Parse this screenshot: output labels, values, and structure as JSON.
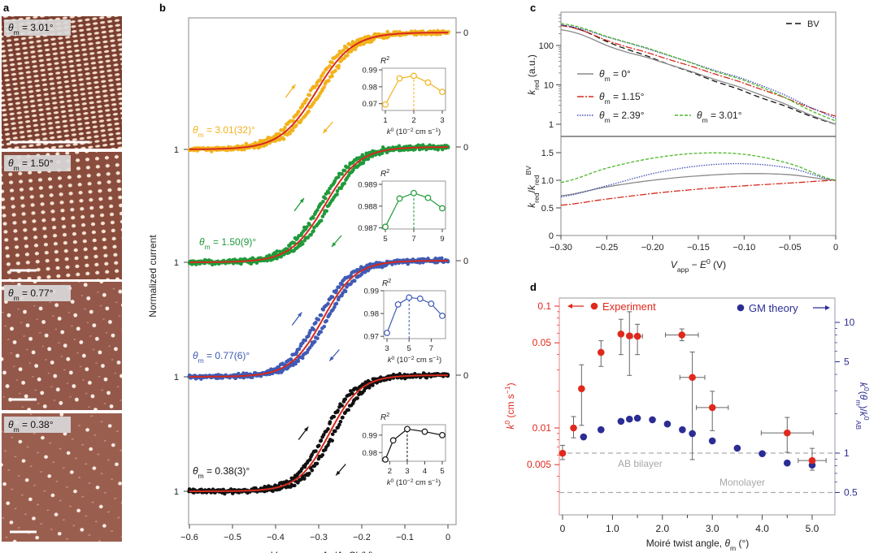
{
  "panel_labels": [
    "a",
    "b",
    "c",
    "d"
  ],
  "chart_data": [
    {
      "panel": "a",
      "type": "image-grid",
      "images": [
        {
          "label": [
            {
              "t": "θ",
              "s": "i"
            },
            {
              "t": "m",
              "s": "sub"
            },
            {
              "t": " = 3.01°",
              "s": ""
            }
          ],
          "density": "high"
        },
        {
          "label": [
            {
              "t": "θ",
              "s": "i"
            },
            {
              "t": "m",
              "s": "sub"
            },
            {
              "t": " = 1.50°",
              "s": ""
            }
          ],
          "density": "medium"
        },
        {
          "label": [
            {
              "t": "θ",
              "s": "i"
            },
            {
              "t": "m",
              "s": "sub"
            },
            {
              "t": " = 0.77°",
              "s": ""
            }
          ],
          "density": "low"
        },
        {
          "label": [
            {
              "t": "θ",
              "s": "i"
            },
            {
              "t": "m",
              "s": "sub"
            },
            {
              "t": " = 0.38°",
              "s": ""
            }
          ],
          "density": "sparse"
        }
      ]
    },
    {
      "panel": "b",
      "type": "scatter",
      "xlabel": [
        {
          "t": "V",
          "s": "i"
        },
        {
          "t": "app",
          "s": "sub"
        },
        {
          "t": " versus Ag/AgCl (V)",
          "s": ""
        }
      ],
      "ylabel": "Normalized current",
      "xlim": [
        -0.6,
        0
      ],
      "xticks": [
        "-0.6",
        "-0.5",
        "-0.4",
        "-0.3",
        "-0.2",
        "-0.1",
        "0"
      ],
      "left_tick_label": "1",
      "right_tick_label": "0",
      "fit_color": "#d62a1e",
      "series": [
        {
          "name": [
            {
              "t": "θ",
              "s": "i"
            },
            {
              "t": "m",
              "s": "sub"
            },
            {
              "t": " = 3.01(32)°",
              "s": ""
            }
          ],
          "color": "#f2b21b",
          "E_half": -0.305,
          "width": 0.042,
          "inset": {
            "title": [
              {
                "t": "R",
                "s": "i"
              },
              {
                "t": "2",
                "s": "sup"
              }
            ],
            "k0": [
              1,
              1.5,
              2,
              2.5,
              3
            ],
            "R2": [
              0.9695,
              0.985,
              0.9865,
              0.9825,
              0.977
            ],
            "ylim": [
              0.966,
              0.991
            ],
            "yticks": [
              "0.97",
              "0.98",
              "0.99"
            ],
            "xticks": [
              "1",
              "2",
              "3"
            ],
            "xlim": [
              1,
              3
            ],
            "best": 2
          }
        },
        {
          "name": [
            {
              "t": "θ",
              "s": "i"
            },
            {
              "t": "m",
              "s": "sub"
            },
            {
              "t": " = 1.50(9)°",
              "s": ""
            }
          ],
          "color": "#1f9a3a",
          "E_half": -0.285,
          "width": 0.04,
          "inset": {
            "title": [
              {
                "t": "R",
                "s": "i"
              },
              {
                "t": "2",
                "s": "sup"
              }
            ],
            "k0": [
              5,
              6,
              7,
              8,
              9
            ],
            "R2": [
              0.98705,
              0.98835,
              0.9886,
              0.98838,
              0.9879
            ],
            "ylim": [
              0.98695,
              0.98915
            ],
            "yticks": [
              "0.987",
              "0.988",
              "0.989"
            ],
            "xticks": [
              "5",
              "7",
              "9"
            ],
            "xlim": [
              5,
              9
            ],
            "best": 7
          }
        },
        {
          "name": [
            {
              "t": "θ",
              "s": "i"
            },
            {
              "t": "m",
              "s": "sub"
            },
            {
              "t": " = 0.77(6)°",
              "s": ""
            }
          ],
          "color": "#3f5bb5",
          "E_half": -0.29,
          "width": 0.038,
          "inset": {
            "title": [
              {
                "t": "R",
                "s": "i"
              },
              {
                "t": "2",
                "s": "sup"
              }
            ],
            "k0": [
              3,
              4,
              5,
              6,
              7,
              8
            ],
            "R2": [
              0.9715,
              0.984,
              0.987,
              0.9865,
              0.9843,
              0.979
            ],
            "ylim": [
              0.969,
              0.99
            ],
            "yticks": [
              "0.97",
              "0.98",
              "0.99"
            ],
            "xticks": [
              "3",
              "5",
              "7"
            ],
            "xlim": [
              3,
              8
            ],
            "best": 5
          }
        },
        {
          "name": [
            {
              "t": "θ",
              "s": "i"
            },
            {
              "t": "m",
              "s": "sub"
            },
            {
              "t": " = 0.38(3)°",
              "s": ""
            }
          ],
          "color": "#111111",
          "E_half": -0.275,
          "width": 0.036,
          "inset": {
            "title": [
              {
                "t": "R",
                "s": "i"
              },
              {
                "t": "2",
                "s": "sup"
              }
            ],
            "k0": [
              1.75,
              2.2,
              3,
              4,
              5
            ],
            "R2": [
              0.976,
              0.987,
              0.9935,
              0.992,
              0.99
            ],
            "ylim": [
              0.975,
              0.996
            ],
            "yticks": [
              "0.98",
              "0.99"
            ],
            "xticks": [
              "2",
              "3",
              "4",
              "5"
            ],
            "xlim": [
              1.75,
              5
            ],
            "best": 3
          }
        }
      ],
      "inset_xlabel": [
        {
          "t": "k",
          "s": "i"
        },
        {
          "t": "0",
          "s": "sup"
        },
        {
          "t": " (10",
          "s": ""
        },
        {
          "t": "−2",
          "s": "sup"
        },
        {
          "t": " cm s",
          "s": ""
        },
        {
          "t": "−1",
          "s": "sup"
        },
        {
          "t": ")",
          "s": ""
        }
      ]
    },
    {
      "panel": "c",
      "type": "line",
      "x": [
        -0.3,
        -0.25,
        -0.2,
        -0.15,
        -0.1,
        -0.05,
        0
      ],
      "xlabel": [
        {
          "t": "V",
          "s": "i"
        },
        {
          "t": "app",
          "s": "sub"
        },
        {
          "t": " − ",
          "s": ""
        },
        {
          "t": "E",
          "s": "i"
        },
        {
          "t": "0",
          "s": "sup"
        },
        {
          "t": " (V)",
          "s": ""
        }
      ],
      "xticks": [
        "−0.30",
        "−0.25",
        "−0.20",
        "−0.15",
        "−0.10",
        "−0.05",
        "0"
      ],
      "top": {
        "ylabel": [
          {
            "t": "k",
            "s": "i"
          },
          {
            "t": "red",
            "s": "sub"
          },
          {
            "t": " (a.u.)",
            "s": ""
          }
        ],
        "yscale": "log",
        "ylim": [
          0.6,
          450
        ],
        "yticks": [
          "1",
          "10",
          "100"
        ],
        "series": [
          {
            "name": "BV",
            "legend": "BV",
            "color": "#111111",
            "dash": "7,4",
            "values": [
              330,
              126,
              48,
              18,
              6.9,
              2.6,
              1.0
            ]
          },
          {
            "name": "0",
            "legend": [
              {
                "t": "θ",
                "s": "i"
              },
              {
                "t": "m",
                "s": "sub"
              },
              {
                "t": " = 0°",
                "s": ""
              }
            ],
            "color": "#8a8a8a",
            "dash": "",
            "values": [
              250,
              100,
              45,
              19,
              8,
              2.9,
              1.0
            ]
          },
          {
            "name": "1.15",
            "legend": [
              {
                "t": "θ",
                "s": "i"
              },
              {
                "t": "m",
                "s": "sub"
              },
              {
                "t": " = 1.15°",
                "s": ""
              }
            ],
            "color": "#d62a1e",
            "dash": "8,2,2,2",
            "values": [
              320,
              135,
              60,
              26,
              11,
              4.2,
              1.6
            ]
          },
          {
            "name": "2.39",
            "legend": [
              {
                "t": "θ",
                "s": "i"
              },
              {
                "t": "m",
                "s": "sub"
              },
              {
                "t": " = 2.39°",
                "s": ""
              }
            ],
            "color": "#3f4fb5",
            "dash": "1.5,1.5",
            "values": [
              330,
              165,
              75,
              32,
              14,
              4.8,
              1.4
            ]
          },
          {
            "name": "3.01",
            "legend": [
              {
                "t": "θ",
                "s": "i"
              },
              {
                "t": "m",
                "s": "sub"
              },
              {
                "t": " = 3.01°",
                "s": ""
              }
            ],
            "color": "#4cb82a",
            "dash": "4,2",
            "values": [
              360,
              170,
              78,
              31,
              13,
              4.1,
              1.2
            ]
          }
        ]
      },
      "bottom": {
        "ylabel": [
          {
            "t": "k",
            "s": "i"
          },
          {
            "t": "red",
            "s": "sub"
          },
          {
            "t": "/",
            "s": ""
          },
          {
            "t": "k",
            "s": "i"
          },
          {
            "t": "red",
            "s": "sub"
          },
          {
            "t": "BV",
            "s": "sup"
          }
        ],
        "ylim": [
          0,
          1.8
        ],
        "yticks": [
          "0",
          "0.5",
          "1.0",
          "1.5"
        ],
        "series": [
          {
            "name": "0",
            "color": "#8a8a8a",
            "dash": "",
            "values": [
              0.72,
              0.88,
              1.0,
              1.08,
              1.12,
              1.1,
              1.0
            ]
          },
          {
            "name": "1.15",
            "color": "#d62a1e",
            "dash": "8,2,2,2",
            "values": [
              0.55,
              0.66,
              0.76,
              0.84,
              0.9,
              0.95,
              1.0
            ]
          },
          {
            "name": "2.39",
            "color": "#3f4fb5",
            "dash": "1.5,1.5",
            "values": [
              0.7,
              0.9,
              1.12,
              1.26,
              1.3,
              1.22,
              1.0
            ]
          },
          {
            "name": "3.01",
            "color": "#4cb82a",
            "dash": "4,2",
            "values": [
              0.96,
              1.22,
              1.4,
              1.49,
              1.47,
              1.3,
              1.0
            ]
          }
        ]
      }
    },
    {
      "panel": "d",
      "type": "scatter",
      "xlabel": [
        {
          "t": "Moiré twist angle, ",
          "s": ""
        },
        {
          "t": "θ",
          "s": "i"
        },
        {
          "t": "m",
          "s": "sub"
        },
        {
          "t": " (°)",
          "s": ""
        }
      ],
      "ylabel_left": [
        {
          "t": "k",
          "s": "i"
        },
        {
          "t": "0",
          "s": "sup"
        },
        {
          "t": " (cm s",
          "s": ""
        },
        {
          "t": "−1",
          "s": "sup"
        },
        {
          "t": ")",
          "s": ""
        }
      ],
      "ylabel_right": [
        {
          "t": "k",
          "s": "i"
        },
        {
          "t": "0",
          "s": "sup"
        },
        {
          "t": "(",
          "s": ""
        },
        {
          "t": "θ",
          "s": "i"
        },
        {
          "t": "m",
          "s": "sub"
        },
        {
          "t": ")/",
          "s": ""
        },
        {
          "t": "k",
          "s": "i"
        },
        {
          "t": "0",
          "s": "sup"
        },
        {
          "t": "AB",
          "s": "sub"
        }
      ],
      "xlim": [
        -0.07,
        5.5
      ],
      "xticks": [
        "0",
        "1.0",
        "2.0",
        "3.0",
        "4.0",
        "5.0"
      ],
      "left_yscale": "log",
      "left_yticks": [
        "0.1",
        "0.05",
        "0.01",
        "0.005"
      ],
      "right_yscale": "log",
      "right_yticks": [
        "10",
        "5",
        "1",
        "0.5"
      ],
      "experiment": {
        "name": "Experiment",
        "color": "#e0281c",
        "points": [
          {
            "x": 0,
            "y": 0.0062,
            "xerr": 0,
            "ylo": 0.0055,
            "yhi": 0.0072
          },
          {
            "x": 0.22,
            "y": 0.01,
            "xerr": 0,
            "ylo": 0.0083,
            "yhi": 0.0124
          },
          {
            "x": 0.38,
            "y": 0.021,
            "xerr": 0,
            "ylo": 0.0105,
            "yhi": 0.033
          },
          {
            "x": 0.77,
            "y": 0.0417,
            "xerr": 0,
            "ylo": 0.032,
            "yhi": 0.052
          },
          {
            "x": 1.17,
            "y": 0.059,
            "xerr": 0,
            "ylo": 0.04,
            "yhi": 0.078
          },
          {
            "x": 1.34,
            "y": 0.057,
            "xerr": 0,
            "ylo": 0.027,
            "yhi": 0.09
          },
          {
            "x": 1.5,
            "y": 0.0566,
            "xerr": 0.1,
            "ylo": 0.04,
            "yhi": 0.071
          },
          {
            "x": 2.39,
            "y": 0.058,
            "xerr": 0.33,
            "ylo": 0.052,
            "yhi": 0.065
          },
          {
            "x": 2.6,
            "y": 0.026,
            "xerr": 0.25,
            "ylo": 0.0055,
            "yhi": 0.042
          },
          {
            "x": 3.0,
            "y": 0.0147,
            "xerr": 0.32,
            "ylo": 0.0095,
            "yhi": 0.02
          },
          {
            "x": 4.5,
            "y": 0.0091,
            "xerr": 0.52,
            "ylo": 0.0063,
            "yhi": 0.0122
          },
          {
            "x": 5.0,
            "y": 0.0054,
            "xerr": 0.28,
            "ylo": 0.0045,
            "yhi": 0.0068
          }
        ]
      },
      "theory": {
        "name": "GM theory",
        "color": "#2b2d94",
        "points": [
          {
            "x": 0.42,
            "y": 1.33
          },
          {
            "x": 0.77,
            "y": 1.51
          },
          {
            "x": 1.17,
            "y": 1.75
          },
          {
            "x": 1.34,
            "y": 1.82
          },
          {
            "x": 1.5,
            "y": 1.85
          },
          {
            "x": 1.8,
            "y": 1.8
          },
          {
            "x": 2.1,
            "y": 1.67
          },
          {
            "x": 2.4,
            "y": 1.51
          },
          {
            "x": 2.6,
            "y": 1.41
          },
          {
            "x": 3.0,
            "y": 1.24
          },
          {
            "x": 3.5,
            "y": 1.09
          },
          {
            "x": 4.0,
            "y": 0.99
          },
          {
            "x": 4.5,
            "y": 0.84
          },
          {
            "x": 5.0,
            "y": 0.81
          }
        ]
      },
      "reference_lines": [
        {
          "label": "AB bilayer",
          "y_right": 1.0
        },
        {
          "label": "Monolayer",
          "y_right": 0.5
        }
      ]
    }
  ]
}
